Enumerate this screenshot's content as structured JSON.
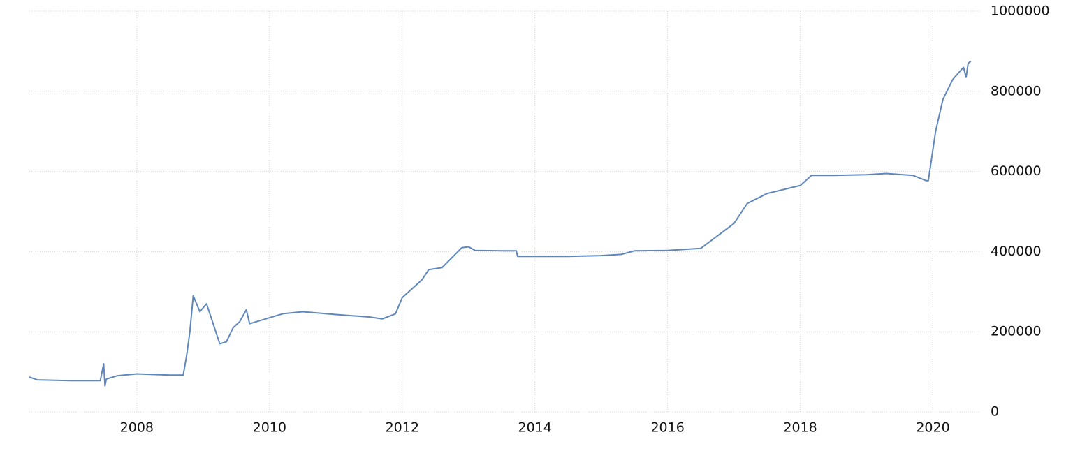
{
  "chart_data": {
    "type": "line",
    "x": [
      2006.38,
      2006.5,
      2007.0,
      2007.45,
      2007.5,
      2007.52,
      2007.54,
      2007.7,
      2008.0,
      2008.5,
      2008.7,
      2008.75,
      2008.8,
      2008.85,
      2008.95,
      2009.05,
      2009.15,
      2009.25,
      2009.35,
      2009.45,
      2009.55,
      2009.65,
      2009.7,
      2010.0,
      2010.2,
      2010.5,
      2011.0,
      2011.5,
      2011.7,
      2011.9,
      2012.0,
      2012.3,
      2012.4,
      2012.6,
      2012.9,
      2013.0,
      2013.1,
      2013.5,
      2013.72,
      2013.74,
      2014.5,
      2015.0,
      2015.3,
      2015.5,
      2016.0,
      2016.5,
      2017.0,
      2017.2,
      2017.5,
      2018.0,
      2018.1,
      2018.17,
      2018.5,
      2019.0,
      2019.3,
      2019.7,
      2019.9,
      2019.93,
      2020.04,
      2020.15,
      2020.3,
      2020.46,
      2020.5,
      2020.53,
      2020.57
    ],
    "series": [
      {
        "color": "#5f87bb",
        "values": [
          87000,
          80000,
          78000,
          78000,
          120000,
          65000,
          82000,
          90000,
          95000,
          92000,
          92000,
          140000,
          200000,
          290000,
          250000,
          270000,
          220000,
          170000,
          175000,
          210000,
          225000,
          255000,
          220000,
          235000,
          245000,
          250000,
          243000,
          237000,
          232000,
          245000,
          285000,
          330000,
          355000,
          360000,
          410000,
          412000,
          403000,
          402000,
          402000,
          388000,
          388000,
          390000,
          393000,
          402000,
          403000,
          408000,
          470000,
          520000,
          545000,
          565000,
          580000,
          590000,
          590000,
          592000,
          595000,
          590000,
          577000,
          577000,
          700000,
          780000,
          830000,
          860000,
          835000,
          870000,
          875000
        ]
      }
    ],
    "xlim": [
      2006.38,
      2020.7
    ],
    "xticks": [
      2008,
      2010,
      2012,
      2014,
      2016,
      2018,
      2020
    ],
    "ylim": [
      0,
      1000000
    ],
    "yticks": [
      0,
      200000,
      400000,
      600000,
      800000,
      1000000
    ],
    "grid": true
  }
}
